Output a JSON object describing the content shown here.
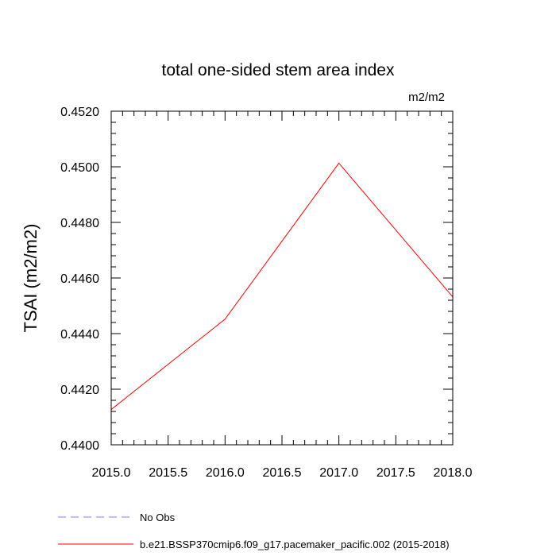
{
  "chart_data": {
    "type": "line",
    "title": "total one-sided stem area index",
    "units_label": "m2/m2",
    "ylabel": "TSAI  (m2/m2)",
    "xlabel": "",
    "xlim": [
      2015.0,
      2018.0
    ],
    "ylim": [
      0.44,
      0.452
    ],
    "x_ticks": [
      2015.0,
      2015.5,
      2016.0,
      2016.5,
      2017.0,
      2017.5,
      2018.0
    ],
    "x_tick_labels": [
      "2015.0",
      "2015.5",
      "2016.0",
      "2016.5",
      "2017.0",
      "2017.5",
      "2018.0"
    ],
    "y_ticks": [
      0.44,
      0.442,
      0.444,
      0.446,
      0.448,
      0.45,
      0.452
    ],
    "y_tick_labels": [
      "0.4400",
      "0.4420",
      "0.4440",
      "0.4460",
      "0.4480",
      "0.4500",
      "0.4520"
    ],
    "grid": false,
    "legend_position": "bottom",
    "series": [
      {
        "name": "b.e21.BSSP370cmip6.f09_g17.pacemaker_pacific.002 (2015-2018)",
        "color": "#ff0000",
        "dash": "solid",
        "x": [
          2015.0,
          2016.0,
          2017.0,
          2018.0
        ],
        "y": [
          0.44127,
          0.44452,
          0.45013,
          0.44532
        ]
      }
    ],
    "legend": [
      {
        "label": "No Obs",
        "color": "#7f7fff",
        "dash": "dashed"
      },
      {
        "label": "b.e21.BSSP370cmip6.f09_g17.pacemaker_pacific.002 (2015-2018)",
        "color": "#ff0000",
        "dash": "solid"
      }
    ]
  }
}
